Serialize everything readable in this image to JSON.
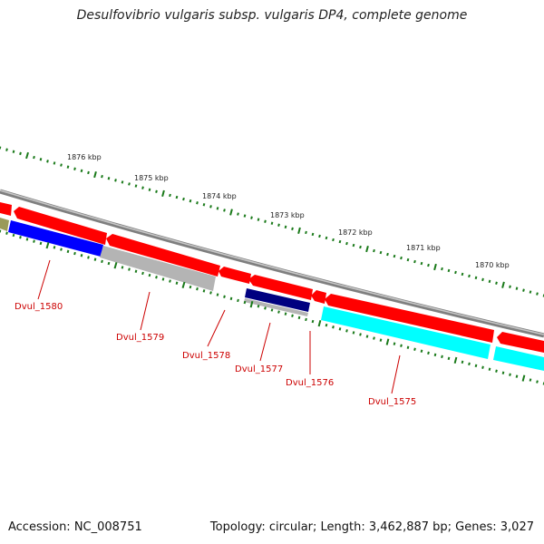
{
  "title": "Desulfovibrio vulgaris subsp. vulgaris DP4, complete genome",
  "accession_text": "Accession: NC_008751",
  "topology_text": "Topology: circular; Length: 3,462,887 bp; Genes: 3,027",
  "colors": {
    "backbone": "#7f7f7f",
    "tick": "#1a7a1a",
    "forward_cds": "#ff0000",
    "label": "#cc0000",
    "blue": "#0000ff",
    "grey": "#b4b4b4",
    "navy": "#000080",
    "cyan": "#00ffff",
    "olive": "#9a9a5a"
  },
  "ruler": {
    "labels": [
      "1876 kbp",
      "1875 kbp",
      "1874 kbp",
      "1873 kbp",
      "1872 kbp",
      "1871 kbp",
      "1870 kbp"
    ]
  },
  "gene_labels": [
    "Dvul_1580",
    "Dvul_1579",
    "Dvul_1578",
    "Dvul_1577",
    "Dvul_1576",
    "Dvul_1575"
  ]
}
